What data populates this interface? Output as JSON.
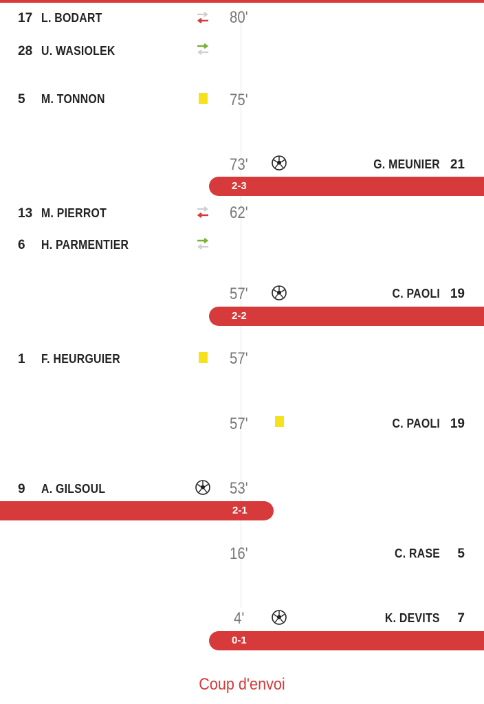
{
  "events": {
    "e1": {
      "num": "17",
      "name": "L. BODART",
      "minute": "80'"
    },
    "e2": {
      "num": "28",
      "name": "U. WASIOLEK"
    },
    "e3": {
      "num": "5",
      "name": "M. TONNON",
      "minute": "75'"
    },
    "e4": {
      "num": "21",
      "name": "G. MEUNIER",
      "minute": "73'"
    },
    "s1": {
      "score": "2-3"
    },
    "e5": {
      "num": "13",
      "name": "M. PIERROT",
      "minute": "62'"
    },
    "e6": {
      "num": "6",
      "name": "H. PARMENTIER"
    },
    "e7": {
      "num": "19",
      "name": "C. PAOLI",
      "minute": "57'"
    },
    "s2": {
      "score": "2-2"
    },
    "e8": {
      "num": "1",
      "name": "F. HEURGUIER",
      "minute": "57'"
    },
    "e9": {
      "num": "19",
      "name": "C. PAOLI",
      "minute": "57'"
    },
    "e10": {
      "num": "9",
      "name": "A. GILSOUL",
      "minute": "53'"
    },
    "s3": {
      "score": "2-1"
    },
    "e11": {
      "num": "5",
      "name": "C. RASE",
      "minute": "16'"
    },
    "e12": {
      "num": "7",
      "name": "K. DEVITS",
      "minute": "4'"
    },
    "s4": {
      "score": "0-1"
    }
  },
  "kickoff": "Coup d'envoi",
  "colors": {
    "accent": "#d63a3a",
    "yellow_card": "#f5e21c",
    "sub_in": "#7ab13b",
    "sub_out": "#d63a3a"
  },
  "icons": [
    "substitution-icon",
    "yellow-card-icon",
    "ball-icon"
  ]
}
